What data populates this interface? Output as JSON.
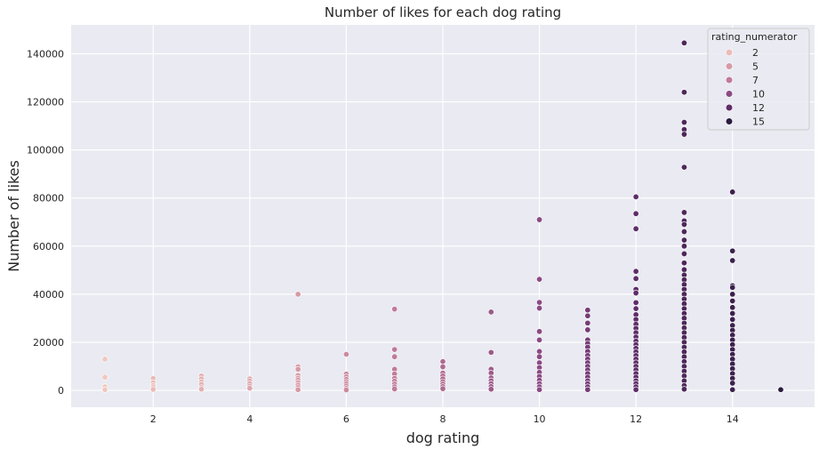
{
  "chart_data": {
    "type": "scatter",
    "title": "Number of likes for each dog rating",
    "xlabel": "dog rating",
    "ylabel": "Number of likes",
    "xlim": [
      0.3,
      15.7
    ],
    "ylim": [
      -7000,
      152000
    ],
    "xticks": [
      2,
      4,
      6,
      8,
      10,
      12,
      14
    ],
    "yticks": [
      0,
      20000,
      40000,
      60000,
      80000,
      100000,
      120000,
      140000
    ],
    "grid": true,
    "legend": {
      "title": "rating_numerator",
      "placement": "top-right",
      "entries": [
        {
          "label": "2",
          "color": "#ebbcb9"
        },
        {
          "label": "5",
          "color": "#d79aa6"
        },
        {
          "label": "7",
          "color": "#c07b99"
        },
        {
          "label": "10",
          "color": "#8c4a84"
        },
        {
          "label": "12",
          "color": "#5f2d68"
        },
        {
          "label": "15",
          "color": "#2b1b3f"
        }
      ]
    },
    "points": [
      {
        "x": 1,
        "y": 13000
      },
      {
        "x": 1,
        "y": 5500
      },
      {
        "x": 1,
        "y": 1500
      },
      {
        "x": 1,
        "y": 300
      },
      {
        "x": 2,
        "y": 5000
      },
      {
        "x": 2,
        "y": 3200
      },
      {
        "x": 2,
        "y": 2000
      },
      {
        "x": 2,
        "y": 1200
      },
      {
        "x": 2,
        "y": 400
      },
      {
        "x": 3,
        "y": 6000
      },
      {
        "x": 3,
        "y": 4800
      },
      {
        "x": 3,
        "y": 3500
      },
      {
        "x": 3,
        "y": 2500
      },
      {
        "x": 3,
        "y": 1200
      },
      {
        "x": 3,
        "y": 500
      },
      {
        "x": 4,
        "y": 4800
      },
      {
        "x": 4,
        "y": 3800
      },
      {
        "x": 4,
        "y": 2800
      },
      {
        "x": 4,
        "y": 1800
      },
      {
        "x": 4,
        "y": 900
      },
      {
        "x": 5,
        "y": 40000
      },
      {
        "x": 5,
        "y": 9800
      },
      {
        "x": 5,
        "y": 8800
      },
      {
        "x": 5,
        "y": 6200
      },
      {
        "x": 5,
        "y": 5100
      },
      {
        "x": 5,
        "y": 4200
      },
      {
        "x": 5,
        "y": 3200
      },
      {
        "x": 5,
        "y": 2200
      },
      {
        "x": 5,
        "y": 1200
      },
      {
        "x": 5,
        "y": 300
      },
      {
        "x": 6,
        "y": 15000
      },
      {
        "x": 6,
        "y": 6800
      },
      {
        "x": 6,
        "y": 5600
      },
      {
        "x": 6,
        "y": 4600
      },
      {
        "x": 6,
        "y": 3600
      },
      {
        "x": 6,
        "y": 2700
      },
      {
        "x": 6,
        "y": 1800
      },
      {
        "x": 6,
        "y": 900
      },
      {
        "x": 6,
        "y": 200
      },
      {
        "x": 7,
        "y": 33800
      },
      {
        "x": 7,
        "y": 17000
      },
      {
        "x": 7,
        "y": 14000
      },
      {
        "x": 7,
        "y": 8800
      },
      {
        "x": 7,
        "y": 6800
      },
      {
        "x": 7,
        "y": 5000
      },
      {
        "x": 7,
        "y": 3800
      },
      {
        "x": 7,
        "y": 2600
      },
      {
        "x": 7,
        "y": 1500
      },
      {
        "x": 7,
        "y": 600
      },
      {
        "x": 8,
        "y": 12000
      },
      {
        "x": 8,
        "y": 9800
      },
      {
        "x": 8,
        "y": 7200
      },
      {
        "x": 8,
        "y": 6000
      },
      {
        "x": 8,
        "y": 4800
      },
      {
        "x": 8,
        "y": 3600
      },
      {
        "x": 8,
        "y": 2600
      },
      {
        "x": 8,
        "y": 1600
      },
      {
        "x": 8,
        "y": 700
      },
      {
        "x": 9,
        "y": 32600
      },
      {
        "x": 9,
        "y": 15800
      },
      {
        "x": 9,
        "y": 8800
      },
      {
        "x": 9,
        "y": 7200
      },
      {
        "x": 9,
        "y": 5200
      },
      {
        "x": 9,
        "y": 4000
      },
      {
        "x": 9,
        "y": 2800
      },
      {
        "x": 9,
        "y": 1600
      },
      {
        "x": 9,
        "y": 500
      },
      {
        "x": 10,
        "y": 71000
      },
      {
        "x": 10,
        "y": 46200
      },
      {
        "x": 10,
        "y": 36600
      },
      {
        "x": 10,
        "y": 34200
      },
      {
        "x": 10,
        "y": 24500
      },
      {
        "x": 10,
        "y": 21000
      },
      {
        "x": 10,
        "y": 16200
      },
      {
        "x": 10,
        "y": 14000
      },
      {
        "x": 10,
        "y": 11500
      },
      {
        "x": 10,
        "y": 9500
      },
      {
        "x": 10,
        "y": 7500
      },
      {
        "x": 10,
        "y": 5800
      },
      {
        "x": 10,
        "y": 4200
      },
      {
        "x": 10,
        "y": 2800
      },
      {
        "x": 10,
        "y": 1500
      },
      {
        "x": 10,
        "y": 300
      },
      {
        "x": 11,
        "y": 33400
      },
      {
        "x": 11,
        "y": 31000
      },
      {
        "x": 11,
        "y": 28000
      },
      {
        "x": 11,
        "y": 25200
      },
      {
        "x": 11,
        "y": 21000
      },
      {
        "x": 11,
        "y": 19500
      },
      {
        "x": 11,
        "y": 18000
      },
      {
        "x": 11,
        "y": 16200
      },
      {
        "x": 11,
        "y": 14500
      },
      {
        "x": 11,
        "y": 13000
      },
      {
        "x": 11,
        "y": 11500
      },
      {
        "x": 11,
        "y": 10000
      },
      {
        "x": 11,
        "y": 8500
      },
      {
        "x": 11,
        "y": 7000
      },
      {
        "x": 11,
        "y": 5500
      },
      {
        "x": 11,
        "y": 4000
      },
      {
        "x": 11,
        "y": 2800
      },
      {
        "x": 11,
        "y": 1500
      },
      {
        "x": 11,
        "y": 300
      },
      {
        "x": 12,
        "y": 80500
      },
      {
        "x": 12,
        "y": 73500
      },
      {
        "x": 12,
        "y": 67200
      },
      {
        "x": 12,
        "y": 49500
      },
      {
        "x": 12,
        "y": 46500
      },
      {
        "x": 12,
        "y": 42000
      },
      {
        "x": 12,
        "y": 40500
      },
      {
        "x": 12,
        "y": 36500
      },
      {
        "x": 12,
        "y": 34000
      },
      {
        "x": 12,
        "y": 31500
      },
      {
        "x": 12,
        "y": 29500
      },
      {
        "x": 12,
        "y": 27500
      },
      {
        "x": 12,
        "y": 25800
      },
      {
        "x": 12,
        "y": 24000
      },
      {
        "x": 12,
        "y": 22200
      },
      {
        "x": 12,
        "y": 20500
      },
      {
        "x": 12,
        "y": 19000
      },
      {
        "x": 12,
        "y": 17500
      },
      {
        "x": 12,
        "y": 16000
      },
      {
        "x": 12,
        "y": 14500
      },
      {
        "x": 12,
        "y": 13000
      },
      {
        "x": 12,
        "y": 11500
      },
      {
        "x": 12,
        "y": 10000
      },
      {
        "x": 12,
        "y": 8500
      },
      {
        "x": 12,
        "y": 7000
      },
      {
        "x": 12,
        "y": 5500
      },
      {
        "x": 12,
        "y": 4000
      },
      {
        "x": 12,
        "y": 2800
      },
      {
        "x": 12,
        "y": 1500
      },
      {
        "x": 12,
        "y": 300
      },
      {
        "x": 13,
        "y": 144500
      },
      {
        "x": 13,
        "y": 124000
      },
      {
        "x": 13,
        "y": 111500
      },
      {
        "x": 13,
        "y": 108500
      },
      {
        "x": 13,
        "y": 106500
      },
      {
        "x": 13,
        "y": 92800
      },
      {
        "x": 13,
        "y": 74000
      },
      {
        "x": 13,
        "y": 70500
      },
      {
        "x": 13,
        "y": 69000
      },
      {
        "x": 13,
        "y": 66000
      },
      {
        "x": 13,
        "y": 62500
      },
      {
        "x": 13,
        "y": 60000
      },
      {
        "x": 13,
        "y": 56800
      },
      {
        "x": 13,
        "y": 53000
      },
      {
        "x": 13,
        "y": 50200
      },
      {
        "x": 13,
        "y": 48000
      },
      {
        "x": 13,
        "y": 46000
      },
      {
        "x": 13,
        "y": 44000
      },
      {
        "x": 13,
        "y": 42000
      },
      {
        "x": 13,
        "y": 40000
      },
      {
        "x": 13,
        "y": 38000
      },
      {
        "x": 13,
        "y": 36000
      },
      {
        "x": 13,
        "y": 34000
      },
      {
        "x": 13,
        "y": 32000
      },
      {
        "x": 13,
        "y": 30000
      },
      {
        "x": 13,
        "y": 28000
      },
      {
        "x": 13,
        "y": 26000
      },
      {
        "x": 13,
        "y": 24000
      },
      {
        "x": 13,
        "y": 22000
      },
      {
        "x": 13,
        "y": 20000
      },
      {
        "x": 13,
        "y": 18000
      },
      {
        "x": 13,
        "y": 16000
      },
      {
        "x": 13,
        "y": 14000
      },
      {
        "x": 13,
        "y": 12000
      },
      {
        "x": 13,
        "y": 10000
      },
      {
        "x": 13,
        "y": 8000
      },
      {
        "x": 13,
        "y": 6000
      },
      {
        "x": 13,
        "y": 4000
      },
      {
        "x": 13,
        "y": 2000
      },
      {
        "x": 13,
        "y": 500
      },
      {
        "x": 14,
        "y": 82500
      },
      {
        "x": 14,
        "y": 58000
      },
      {
        "x": 14,
        "y": 54000
      },
      {
        "x": 14,
        "y": 43500
      },
      {
        "x": 14,
        "y": 42800
      },
      {
        "x": 14,
        "y": 40000
      },
      {
        "x": 14,
        "y": 37200
      },
      {
        "x": 14,
        "y": 34500
      },
      {
        "x": 14,
        "y": 32000
      },
      {
        "x": 14,
        "y": 29500
      },
      {
        "x": 14,
        "y": 27000
      },
      {
        "x": 14,
        "y": 25000
      },
      {
        "x": 14,
        "y": 23000
      },
      {
        "x": 14,
        "y": 21000
      },
      {
        "x": 14,
        "y": 19000
      },
      {
        "x": 14,
        "y": 17000
      },
      {
        "x": 14,
        "y": 15000
      },
      {
        "x": 14,
        "y": 13000
      },
      {
        "x": 14,
        "y": 11000
      },
      {
        "x": 14,
        "y": 9000
      },
      {
        "x": 14,
        "y": 7000
      },
      {
        "x": 14,
        "y": 5000
      },
      {
        "x": 14,
        "y": 3000
      },
      {
        "x": 14,
        "y": 300
      },
      {
        "x": 15,
        "y": 300
      }
    ]
  }
}
